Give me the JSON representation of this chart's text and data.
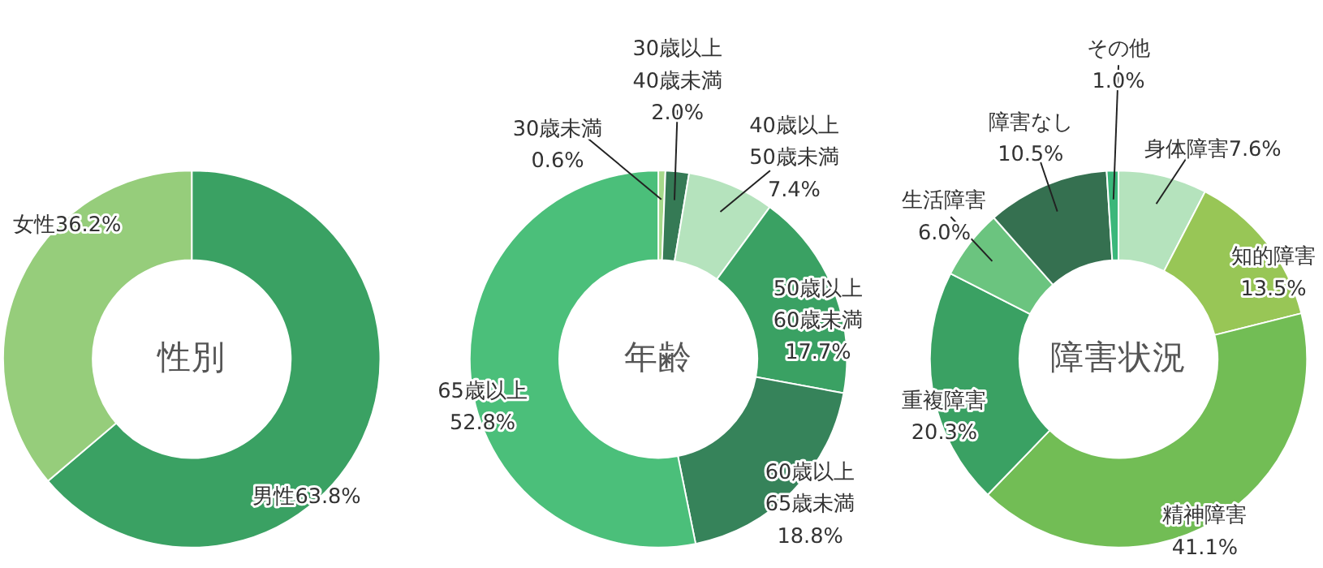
{
  "chart_data": [
    {
      "type": "donut",
      "title": "性別",
      "categories": [
        "男性",
        "女性"
      ],
      "values": [
        63.8,
        36.2
      ],
      "colors": [
        "#3aa163",
        "#96cd7b"
      ],
      "value_labels": [
        "63.8%",
        "36.2%"
      ]
    },
    {
      "type": "donut",
      "title": "年齢",
      "categories": [
        "30歳未満",
        "30歳以上\n40歳未満",
        "40歳以上\n50歳未満",
        "50歳以上\n60歳未満",
        "60歳以上\n65歳未満",
        "65歳以上"
      ],
      "values": [
        0.6,
        2.0,
        7.4,
        17.7,
        18.8,
        52.8
      ],
      "colors": [
        "#a6d98a",
        "#357a55",
        "#b5e3bd",
        "#3aa163",
        "#36835a",
        "#4bbf7a"
      ],
      "value_labels": [
        "0.6%",
        "2.0%",
        "7.4%",
        "17.7%",
        "18.8%",
        "52.8%"
      ]
    },
    {
      "type": "donut",
      "title": "障害状況",
      "categories": [
        "身体障害",
        "知的障害",
        "精神障害",
        "重複障害",
        "生活障害",
        "障害なし",
        "その他"
      ],
      "values": [
        7.6,
        13.5,
        41.1,
        20.3,
        6.0,
        10.5,
        1.0
      ],
      "colors": [
        "#b5e3bd",
        "#98c656",
        "#72bd55",
        "#3aa163",
        "#6bc47f",
        "#357050",
        "#3bb77a"
      ],
      "value_labels": [
        "7.6%",
        "13.5%",
        "41.1%",
        "20.3%",
        "6.0%",
        "10.5%",
        "1.0%"
      ]
    }
  ]
}
